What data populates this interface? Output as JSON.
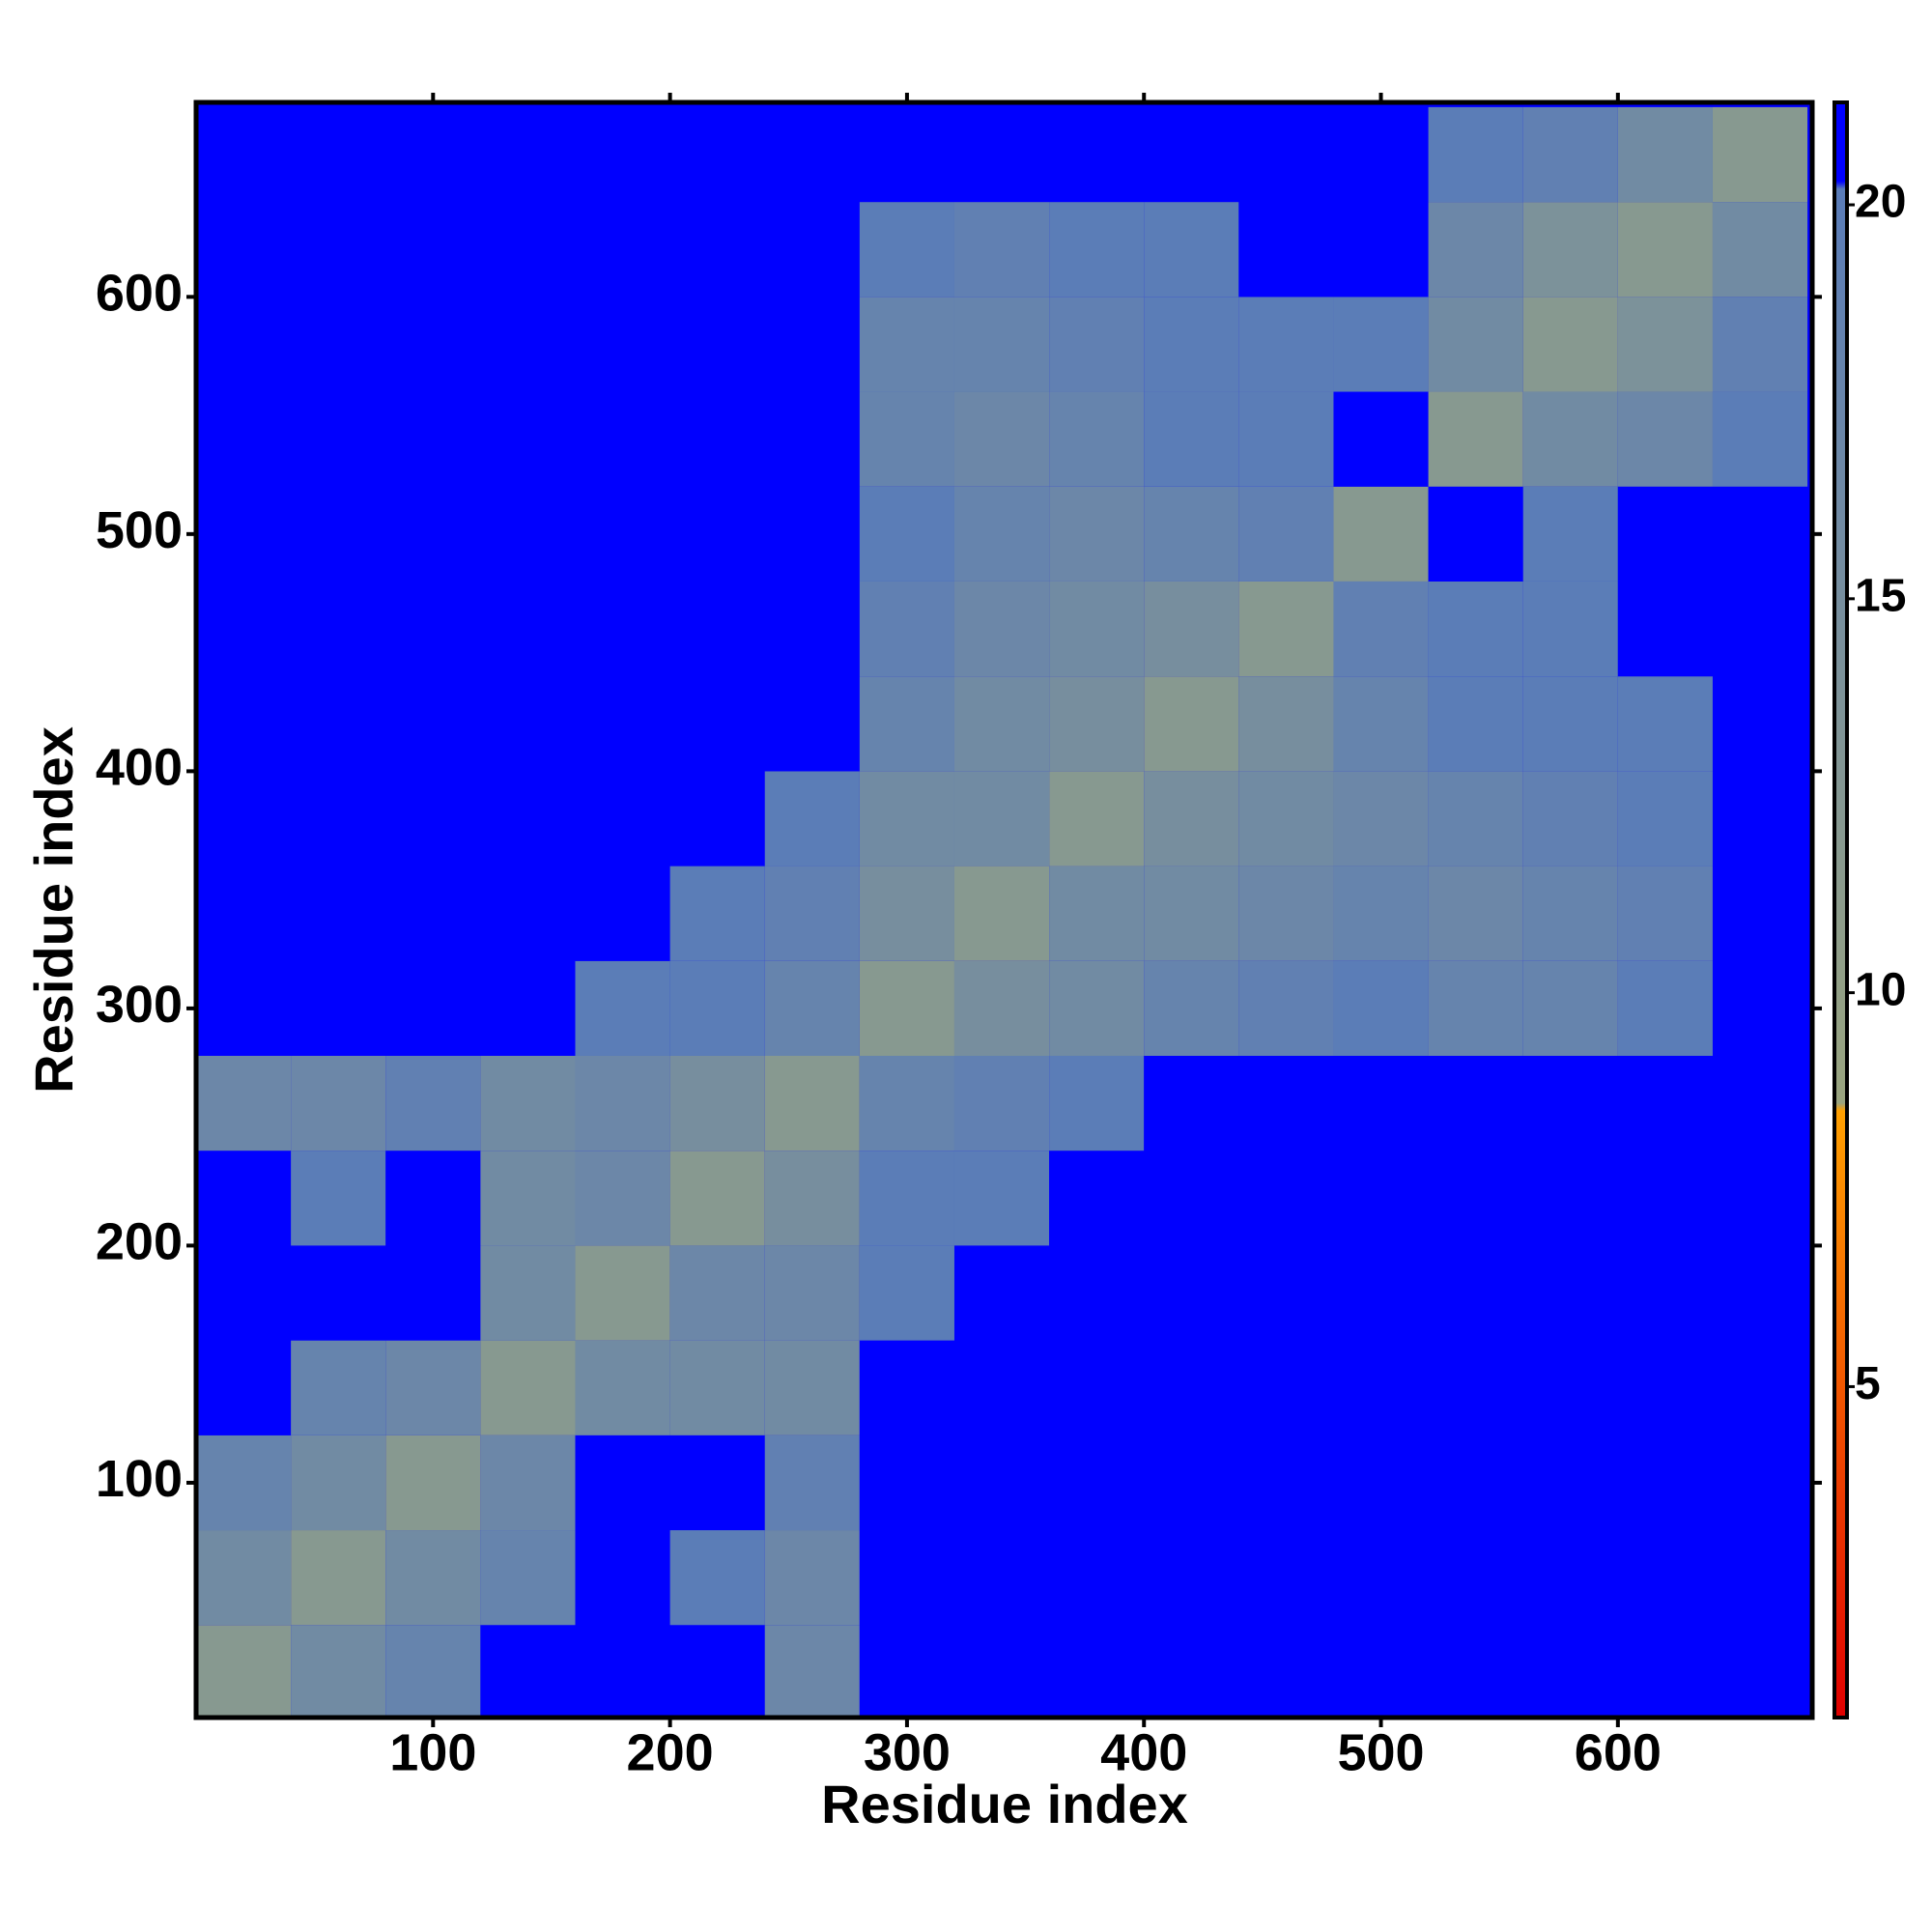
{
  "chart_data": {
    "type": "heatmap",
    "xlabel": "Residue index",
    "ylabel": "Residue index",
    "bins": [
      0,
      40,
      80,
      120,
      160,
      200,
      240,
      280,
      320,
      360,
      400,
      440,
      480,
      520,
      560,
      600,
      640,
      680
    ],
    "values": [
      [
        12
      ],
      [
        16,
        12
      ],
      [
        18,
        16,
        12
      ],
      [
        21,
        18,
        17,
        12
      ],
      [
        21,
        21,
        21,
        16,
        12
      ],
      [
        21,
        20,
        21,
        16,
        17,
        12
      ],
      [
        17,
        17,
        19,
        16,
        17,
        15,
        12
      ],
      [
        21,
        21,
        21,
        21,
        20,
        20,
        18,
        12
      ],
      [
        21,
        21,
        21,
        21,
        21,
        20,
        19,
        15,
        12
      ],
      [
        21,
        21,
        21,
        21,
        21,
        21,
        20,
        16,
        16,
        12
      ],
      [
        21,
        21,
        21,
        21,
        21,
        21,
        21,
        18,
        16,
        15,
        12
      ],
      [
        21,
        21,
        21,
        21,
        21,
        21,
        21,
        19,
        17,
        16,
        15,
        12
      ],
      [
        21,
        21,
        21,
        21,
        21,
        21,
        21,
        20,
        18,
        17,
        18,
        19,
        12
      ],
      [
        21,
        21,
        21,
        21,
        21,
        21,
        21,
        18,
        17,
        18,
        20,
        20,
        21,
        12
      ],
      [
        21,
        21,
        21,
        21,
        21,
        21,
        21,
        18,
        18,
        19,
        20,
        20,
        20,
        16,
        12
      ],
      [
        21,
        21,
        21,
        21,
        21,
        21,
        21,
        20,
        19,
        20,
        20,
        21,
        21,
        17,
        14,
        12
      ],
      [
        21,
        21,
        21,
        21,
        21,
        21,
        21,
        21,
        21,
        21,
        21,
        21,
        21,
        20,
        19,
        16,
        12
      ]
    ],
    "xlim": [
      0,
      682
    ],
    "ylim": [
      1,
      682
    ],
    "xticks": [
      100,
      200,
      300,
      400,
      500,
      600
    ],
    "yticks": [
      100,
      200,
      300,
      400,
      500,
      600
    ],
    "colorbar": {
      "lim": [
        0.8,
        21.3
      ],
      "ticks": [
        5,
        10,
        15,
        20
      ]
    },
    "colorscale": [
      [
        0.8,
        "#e00000"
      ],
      [
        8.5,
        "#ffa000"
      ],
      [
        8.6,
        "#9aa57f"
      ],
      [
        20.2,
        "#5a7cb8"
      ],
      [
        20.3,
        "#0000ff"
      ],
      [
        21.3,
        "#0000ff"
      ]
    ]
  }
}
